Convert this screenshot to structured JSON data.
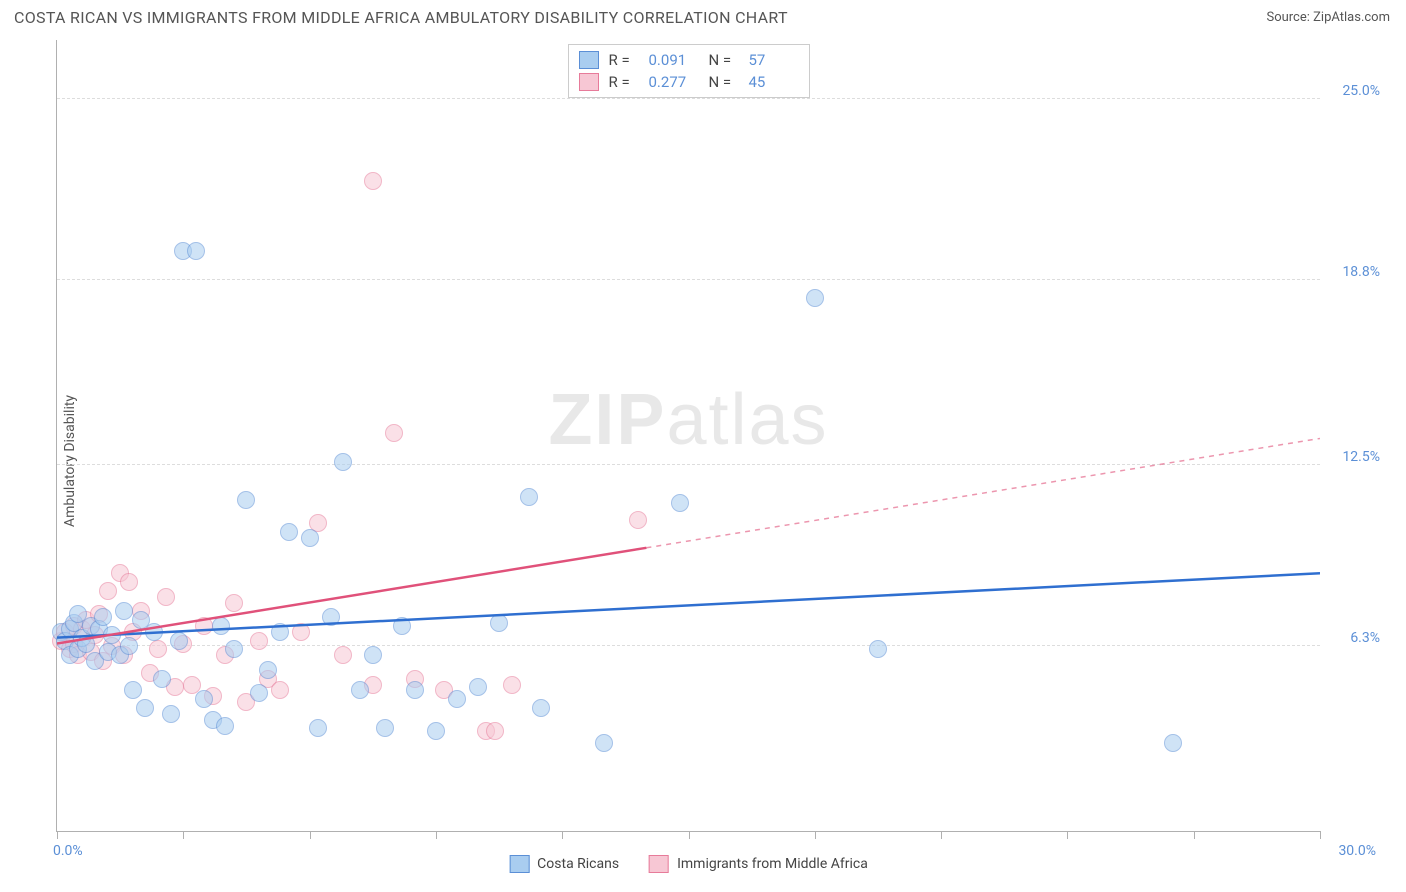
{
  "header": {
    "title": "COSTA RICAN VS IMMIGRANTS FROM MIDDLE AFRICA AMBULATORY DISABILITY CORRELATION CHART",
    "source_prefix": "Source: ",
    "source_name": "ZipAtlas.com"
  },
  "watermark": {
    "bold": "ZIP",
    "rest": "atlas"
  },
  "chart": {
    "type": "scatter",
    "ylabel": "Ambulatory Disability",
    "xlim": [
      0,
      30
    ],
    "ylim": [
      0,
      27
    ],
    "x_ticks_every": 3.0,
    "x_tick_labels": [
      {
        "pos": 0,
        "label": "0.0%",
        "align": "left"
      },
      {
        "pos": 30,
        "label": "30.0%",
        "align": "right"
      }
    ],
    "y_grid": [
      6.3,
      12.5,
      18.8,
      25.0
    ],
    "y_tick_labels": [
      "6.3%",
      "12.5%",
      "18.8%",
      "25.0%"
    ],
    "background_color": "#ffffff",
    "grid_color": "#dddddd",
    "axis_color": "#b0b0b0",
    "tick_label_color": "#5b8fd6",
    "label_color": "#555555",
    "title_fontsize": 16,
    "label_fontsize": 14,
    "marker_radius": 9,
    "marker_opacity": 0.55,
    "series": [
      {
        "name": "Costa Ricans",
        "fill_color": "#a9cdf0",
        "stroke_color": "#5b8fd6",
        "line_color": "#2f6fd0",
        "R": "0.091",
        "N": "57",
        "trend": {
          "x1": 0,
          "y1": 6.6,
          "x2": 30,
          "y2": 8.8,
          "solid_until_x": 30
        },
        "points": [
          [
            0.1,
            6.8
          ],
          [
            0.2,
            6.5
          ],
          [
            0.3,
            6.9
          ],
          [
            0.3,
            6.0
          ],
          [
            0.4,
            7.1
          ],
          [
            0.5,
            6.2
          ],
          [
            0.5,
            7.4
          ],
          [
            0.6,
            6.6
          ],
          [
            0.7,
            6.4
          ],
          [
            0.8,
            7.0
          ],
          [
            0.9,
            5.8
          ],
          [
            1.0,
            6.9
          ],
          [
            1.1,
            7.3
          ],
          [
            1.2,
            6.1
          ],
          [
            1.3,
            6.7
          ],
          [
            1.5,
            6.0
          ],
          [
            1.6,
            7.5
          ],
          [
            1.7,
            6.3
          ],
          [
            1.8,
            4.8
          ],
          [
            2.0,
            7.2
          ],
          [
            2.1,
            4.2
          ],
          [
            2.3,
            6.8
          ],
          [
            2.5,
            5.2
          ],
          [
            2.7,
            4.0
          ],
          [
            2.9,
            6.5
          ],
          [
            3.0,
            19.8
          ],
          [
            3.3,
            19.8
          ],
          [
            3.5,
            4.5
          ],
          [
            3.7,
            3.8
          ],
          [
            3.9,
            7.0
          ],
          [
            4.0,
            3.6
          ],
          [
            4.2,
            6.2
          ],
          [
            4.5,
            11.3
          ],
          [
            4.8,
            4.7
          ],
          [
            5.0,
            5.5
          ],
          [
            5.3,
            6.8
          ],
          [
            5.5,
            10.2
          ],
          [
            6.0,
            10.0
          ],
          [
            6.2,
            3.5
          ],
          [
            6.5,
            7.3
          ],
          [
            6.8,
            12.6
          ],
          [
            7.2,
            4.8
          ],
          [
            7.5,
            6.0
          ],
          [
            7.8,
            3.5
          ],
          [
            8.2,
            7.0
          ],
          [
            8.5,
            4.8
          ],
          [
            9.0,
            3.4
          ],
          [
            9.5,
            4.5
          ],
          [
            10.0,
            4.9
          ],
          [
            10.5,
            7.1
          ],
          [
            11.2,
            11.4
          ],
          [
            11.5,
            4.2
          ],
          [
            13.0,
            3.0
          ],
          [
            14.8,
            11.2
          ],
          [
            18.0,
            18.2
          ],
          [
            19.5,
            6.2
          ],
          [
            26.5,
            3.0
          ]
        ]
      },
      {
        "name": "Immigrants from Middle Africa",
        "fill_color": "#f7c7d4",
        "stroke_color": "#e77b9a",
        "line_color": "#e0517a",
        "R": "0.277",
        "N": "45",
        "trend": {
          "x1": 0,
          "y1": 6.4,
          "x2": 30,
          "y2": 13.4,
          "solid_until_x": 14
        },
        "points": [
          [
            0.1,
            6.5
          ],
          [
            0.2,
            6.8
          ],
          [
            0.3,
            6.2
          ],
          [
            0.4,
            7.0
          ],
          [
            0.4,
            6.4
          ],
          [
            0.5,
            6.0
          ],
          [
            0.6,
            6.9
          ],
          [
            0.7,
            7.2
          ],
          [
            0.8,
            6.1
          ],
          [
            0.9,
            6.7
          ],
          [
            1.0,
            7.4
          ],
          [
            1.1,
            5.8
          ],
          [
            1.2,
            8.2
          ],
          [
            1.3,
            6.3
          ],
          [
            1.5,
            8.8
          ],
          [
            1.6,
            6.0
          ],
          [
            1.7,
            8.5
          ],
          [
            1.8,
            6.8
          ],
          [
            2.0,
            7.5
          ],
          [
            2.2,
            5.4
          ],
          [
            2.4,
            6.2
          ],
          [
            2.6,
            8.0
          ],
          [
            2.8,
            4.9
          ],
          [
            3.0,
            6.4
          ],
          [
            3.2,
            5.0
          ],
          [
            3.5,
            7.0
          ],
          [
            3.7,
            4.6
          ],
          [
            4.0,
            6.0
          ],
          [
            4.2,
            7.8
          ],
          [
            4.5,
            4.4
          ],
          [
            4.8,
            6.5
          ],
          [
            5.0,
            5.2
          ],
          [
            5.3,
            4.8
          ],
          [
            5.8,
            6.8
          ],
          [
            6.2,
            10.5
          ],
          [
            6.8,
            6.0
          ],
          [
            7.5,
            5.0
          ],
          [
            7.5,
            22.2
          ],
          [
            8.0,
            13.6
          ],
          [
            8.5,
            5.2
          ],
          [
            9.2,
            4.8
          ],
          [
            10.2,
            3.4
          ],
          [
            10.4,
            3.4
          ],
          [
            10.8,
            5.0
          ],
          [
            13.8,
            10.6
          ]
        ]
      }
    ],
    "legend_top": {
      "r_label": "R =",
      "n_label": "N ="
    },
    "legend_bottom": {
      "items": [
        "Costa Ricans",
        "Immigrants from Middle Africa"
      ]
    }
  }
}
